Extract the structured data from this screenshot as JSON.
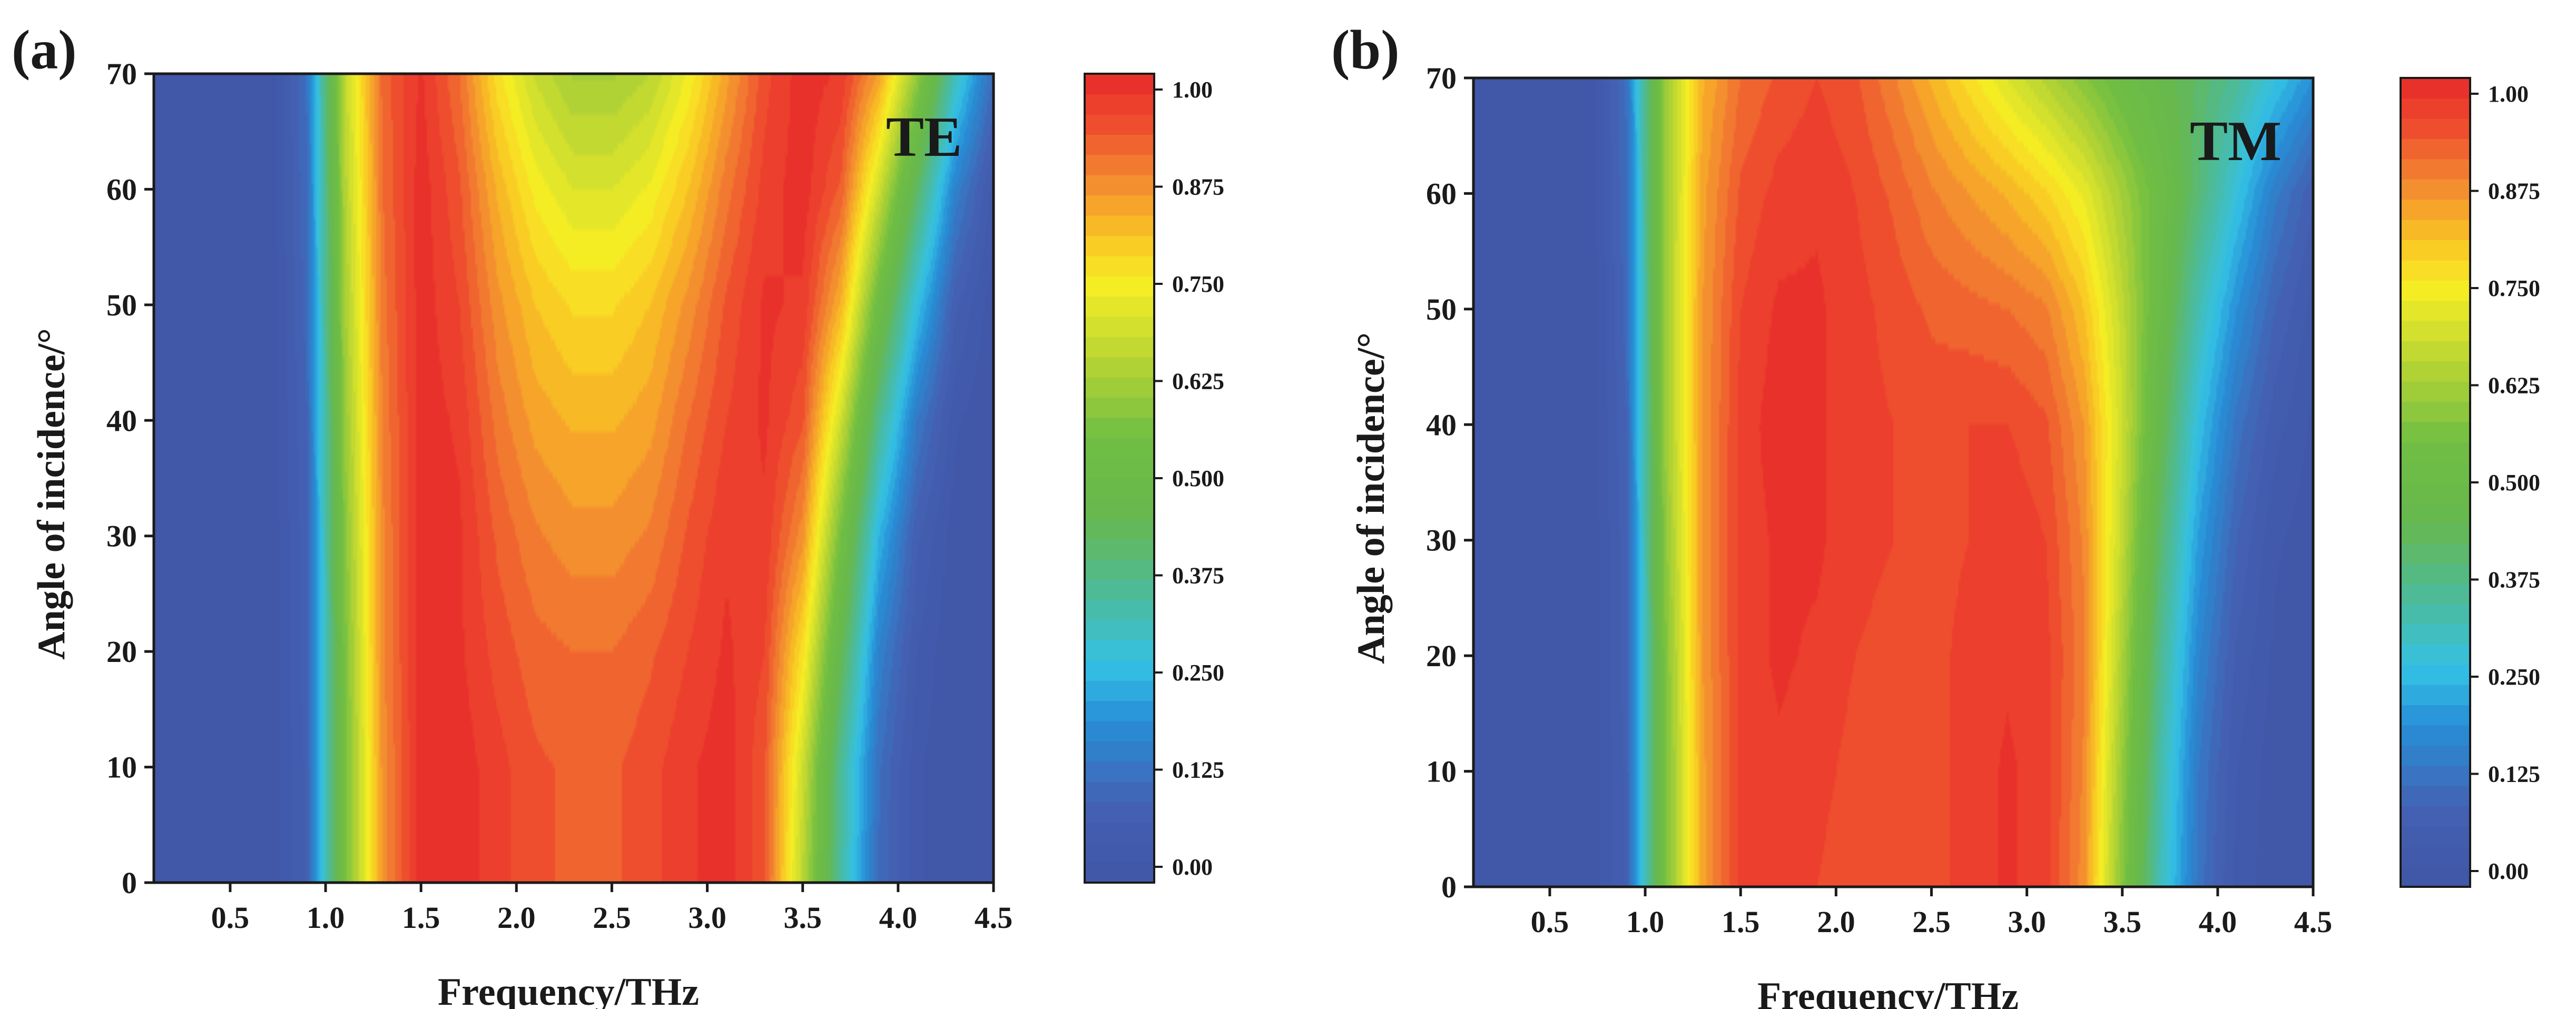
{
  "chart_data": [
    {
      "type": "heatmap",
      "panel_label": "(a)",
      "mode_label": "TE",
      "xlabel": "Frequency/THz",
      "ylabel": "Angle of incidence/°",
      "xlim": [
        0.1,
        4.5
      ],
      "ylim": [
        0,
        70
      ],
      "xticks": [
        "0.5",
        "1.0",
        "1.5",
        "2.0",
        "2.5",
        "3.0",
        "3.5",
        "4.0",
        "4.5"
      ],
      "yticks": [
        "0",
        "10",
        "20",
        "30",
        "40",
        "50",
        "60",
        "70"
      ],
      "colorbar": {
        "range": [
          0.0,
          1.0
        ],
        "ticks": [
          "0.00",
          "0.125",
          "0.250",
          "0.375",
          "0.500",
          "0.625",
          "0.750",
          "0.875",
          "1.00"
        ]
      },
      "grid_x": [
        0.1,
        0.3,
        0.5,
        0.7,
        0.9,
        1.1,
        1.3,
        1.5,
        1.7,
        1.9,
        2.1,
        2.3,
        2.5,
        2.7,
        2.9,
        3.1,
        3.3,
        3.5,
        3.7,
        3.9,
        4.1,
        4.3,
        4.5
      ],
      "grid_y": [
        0,
        10,
        20,
        30,
        40,
        50,
        60,
        70
      ],
      "z": [
        [
          0.0,
          0.0,
          0.0,
          0.0,
          0.08,
          0.55,
          0.86,
          0.99,
          0.99,
          0.96,
          0.93,
          0.92,
          0.92,
          0.94,
          0.97,
          0.99,
          0.93,
          0.65,
          0.35,
          0.12,
          0.03,
          0.0,
          0.0
        ],
        [
          0.0,
          0.0,
          0.0,
          0.0,
          0.08,
          0.55,
          0.86,
          0.99,
          0.99,
          0.96,
          0.93,
          0.92,
          0.92,
          0.94,
          0.97,
          0.99,
          0.93,
          0.68,
          0.36,
          0.13,
          0.03,
          0.0,
          0.0
        ],
        [
          0.0,
          0.0,
          0.0,
          0.0,
          0.09,
          0.56,
          0.87,
          0.99,
          0.98,
          0.94,
          0.91,
          0.9,
          0.9,
          0.92,
          0.95,
          0.98,
          0.95,
          0.76,
          0.45,
          0.17,
          0.05,
          0.0,
          0.0
        ],
        [
          0.0,
          0.0,
          0.0,
          0.0,
          0.09,
          0.58,
          0.87,
          0.99,
          0.98,
          0.92,
          0.88,
          0.86,
          0.86,
          0.88,
          0.93,
          0.97,
          0.97,
          0.86,
          0.55,
          0.25,
          0.08,
          0.01,
          0.0
        ],
        [
          0.0,
          0.0,
          0.0,
          0.0,
          0.1,
          0.6,
          0.88,
          0.99,
          0.97,
          0.89,
          0.84,
          0.82,
          0.82,
          0.84,
          0.9,
          0.95,
          0.98,
          0.93,
          0.68,
          0.37,
          0.15,
          0.03,
          0.0
        ],
        [
          0.0,
          0.0,
          0.0,
          0.0,
          0.11,
          0.62,
          0.89,
          0.99,
          0.95,
          0.86,
          0.8,
          0.77,
          0.77,
          0.8,
          0.86,
          0.93,
          0.98,
          0.97,
          0.82,
          0.52,
          0.27,
          0.08,
          0.01
        ],
        [
          0.0,
          0.0,
          0.0,
          0.0,
          0.12,
          0.64,
          0.9,
          0.99,
          0.93,
          0.82,
          0.74,
          0.7,
          0.7,
          0.73,
          0.8,
          0.89,
          0.96,
          0.99,
          0.92,
          0.68,
          0.42,
          0.17,
          0.04
        ],
        [
          0.0,
          0.0,
          0.0,
          0.0,
          0.13,
          0.66,
          0.91,
          0.98,
          0.9,
          0.76,
          0.67,
          0.62,
          0.62,
          0.65,
          0.73,
          0.84,
          0.94,
          0.99,
          0.97,
          0.84,
          0.6,
          0.32,
          0.12
        ]
      ]
    },
    {
      "type": "heatmap",
      "panel_label": "(b)",
      "mode_label": "TM",
      "xlabel": "Frequency/THz",
      "ylabel": "Angle of incidence/°",
      "xlim": [
        0.1,
        4.5
      ],
      "ylim": [
        0,
        70
      ],
      "xticks": [
        "0.5",
        "1.0",
        "1.5",
        "2.0",
        "2.5",
        "3.0",
        "3.5",
        "4.0",
        "4.5"
      ],
      "yticks": [
        "0",
        "10",
        "20",
        "30",
        "40",
        "50",
        "60",
        "70"
      ],
      "colorbar": {
        "range": [
          0.0,
          1.0
        ],
        "ticks": [
          "0.00",
          "0.125",
          "0.250",
          "0.375",
          "0.500",
          "0.625",
          "0.750",
          "0.875",
          "1.00"
        ]
      },
      "grid_x": [
        0.1,
        0.3,
        0.5,
        0.7,
        0.9,
        1.1,
        1.3,
        1.5,
        1.7,
        1.9,
        2.1,
        2.3,
        2.5,
        2.7,
        2.9,
        3.1,
        3.3,
        3.5,
        3.7,
        3.9,
        4.1,
        4.3,
        4.5
      ],
      "grid_y": [
        0,
        10,
        20,
        30,
        40,
        50,
        60,
        70
      ],
      "z": [
        [
          0.0,
          0.0,
          0.0,
          0.0,
          0.08,
          0.55,
          0.84,
          0.96,
          0.96,
          0.95,
          0.93,
          0.93,
          0.94,
          0.96,
          0.98,
          0.96,
          0.86,
          0.58,
          0.32,
          0.14,
          0.04,
          0.01,
          0.0
        ],
        [
          0.0,
          0.0,
          0.0,
          0.0,
          0.08,
          0.55,
          0.84,
          0.96,
          0.97,
          0.96,
          0.94,
          0.93,
          0.94,
          0.96,
          0.98,
          0.96,
          0.87,
          0.6,
          0.34,
          0.15,
          0.05,
          0.01,
          0.0
        ],
        [
          0.0,
          0.0,
          0.0,
          0.0,
          0.09,
          0.56,
          0.85,
          0.96,
          0.98,
          0.97,
          0.95,
          0.94,
          0.94,
          0.96,
          0.97,
          0.96,
          0.88,
          0.63,
          0.37,
          0.18,
          0.07,
          0.02,
          0.0
        ],
        [
          0.0,
          0.0,
          0.0,
          0.0,
          0.09,
          0.58,
          0.85,
          0.96,
          0.98,
          0.98,
          0.96,
          0.95,
          0.94,
          0.95,
          0.97,
          0.95,
          0.87,
          0.66,
          0.41,
          0.22,
          0.1,
          0.03,
          0.01
        ],
        [
          0.0,
          0.0,
          0.0,
          0.0,
          0.1,
          0.6,
          0.85,
          0.96,
          0.99,
          0.98,
          0.96,
          0.95,
          0.94,
          0.95,
          0.95,
          0.93,
          0.85,
          0.68,
          0.46,
          0.27,
          0.14,
          0.06,
          0.02
        ],
        [
          0.0,
          0.0,
          0.0,
          0.0,
          0.11,
          0.6,
          0.85,
          0.95,
          0.98,
          0.98,
          0.96,
          0.94,
          0.92,
          0.91,
          0.9,
          0.88,
          0.8,
          0.66,
          0.5,
          0.33,
          0.2,
          0.1,
          0.04
        ],
        [
          0.0,
          0.0,
          0.0,
          0.0,
          0.12,
          0.6,
          0.84,
          0.93,
          0.96,
          0.97,
          0.95,
          0.92,
          0.88,
          0.85,
          0.82,
          0.78,
          0.72,
          0.62,
          0.52,
          0.4,
          0.28,
          0.16,
          0.08
        ],
        [
          0.0,
          0.0,
          0.0,
          0.0,
          0.13,
          0.6,
          0.82,
          0.9,
          0.93,
          0.95,
          0.93,
          0.88,
          0.82,
          0.76,
          0.7,
          0.64,
          0.58,
          0.52,
          0.47,
          0.42,
          0.36,
          0.28,
          0.2
        ]
      ]
    }
  ]
}
